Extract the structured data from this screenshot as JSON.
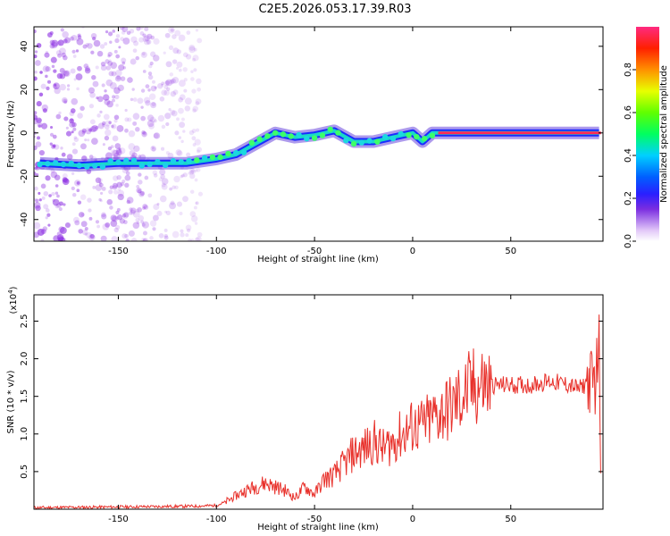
{
  "title": "C2E5.2026.053.17.39.R03",
  "colors": {
    "snr_line": "#e8302a",
    "ridge_core": "#ff2a55",
    "scatter": "#8a2be2"
  },
  "chart_data": [
    {
      "type": "heatmap",
      "name": "spectrogram",
      "xlabel": "Height of straight line (km)",
      "ylabel": "Frequency (Hz)",
      "xlim": [
        -193,
        97
      ],
      "ylim": [
        -50,
        49
      ],
      "xticks": [
        -150,
        -100,
        -50,
        0,
        50
      ],
      "yticks": [
        -40,
        -20,
        0,
        20,
        40
      ],
      "ridge": {
        "x": [
          -190,
          -170,
          -150,
          -130,
          -115,
          -100,
          -90,
          -80,
          -70,
          -60,
          -50,
          -40,
          -30,
          -20,
          -10,
          0,
          5,
          10,
          15,
          30,
          60,
          95
        ],
        "y": [
          -14,
          -15,
          -14,
          -14,
          -14,
          -12,
          -10,
          -5,
          0,
          -2,
          -1,
          1,
          -4,
          -4,
          -2,
          0,
          -4,
          0,
          0,
          0,
          0,
          0
        ]
      },
      "colorbar": {
        "label": "Normalized spectral amplitude",
        "range": [
          0,
          1
        ],
        "ticks": [
          "0.0",
          "0.2",
          "0.4",
          "0.6",
          "0.8"
        ]
      }
    },
    {
      "type": "line",
      "name": "snr",
      "xlabel": "Height of straight line (km)",
      "ylabel": "SNR (10 * v/v)",
      "scale_label": "(x10",
      "scale_exp": "4",
      "scale_close": ")",
      "xlim": [
        -193,
        97
      ],
      "ylim": [
        0,
        2.85
      ],
      "xticks": [
        -150,
        -100,
        -50,
        0,
        50
      ],
      "yticks": [
        "0.5",
        "1.0",
        "1.5",
        "2.0",
        "2.5"
      ],
      "x": [
        -193,
        -150,
        -110,
        -100,
        -95,
        -90,
        -85,
        -80,
        -75,
        -70,
        -65,
        -60,
        -55,
        -50,
        -45,
        -40,
        -35,
        -30,
        -25,
        -20,
        -15,
        -10,
        -5,
        0,
        5,
        10,
        15,
        20,
        25,
        30,
        35,
        40,
        50,
        60,
        70,
        80,
        85,
        90,
        93,
        95,
        96
      ],
      "values": [
        0.02,
        0.03,
        0.04,
        0.05,
        0.1,
        0.18,
        0.25,
        0.3,
        0.35,
        0.3,
        0.25,
        0.15,
        0.3,
        0.2,
        0.4,
        0.45,
        0.6,
        0.75,
        0.8,
        0.9,
        0.8,
        0.9,
        1.0,
        1.1,
        1.1,
        1.2,
        1.3,
        1.35,
        1.5,
        1.6,
        1.65,
        1.65,
        1.65,
        1.65,
        1.7,
        1.65,
        1.6,
        1.7,
        1.7,
        2.2,
        0.5
      ]
    }
  ]
}
